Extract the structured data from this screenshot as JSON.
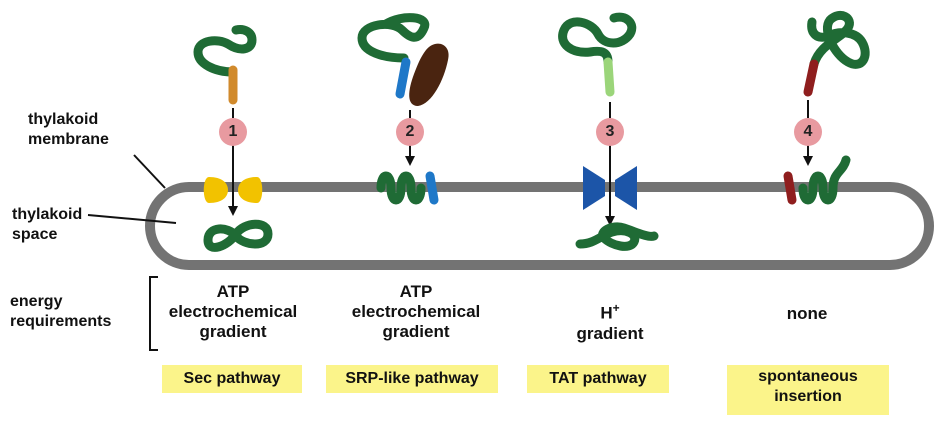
{
  "labels": {
    "membrane_line1": "thylakoid",
    "membrane_line2": "membrane",
    "space_line1": "thylakoid",
    "space_line2": "space",
    "energy_line1": "energy",
    "energy_line2": "requirements"
  },
  "steps": [
    "1",
    "2",
    "3",
    "4"
  ],
  "energy": [
    {
      "line1": "ATP",
      "line2": "electrochemical",
      "line3": "gradient"
    },
    {
      "line1": "ATP",
      "line2": "electrochemical",
      "line3": "gradient"
    },
    {
      "line1": "H",
      "sup": "+",
      "line2": "gradient"
    },
    {
      "line1": "none"
    }
  ],
  "pathways": [
    {
      "line1": "Sec pathway"
    },
    {
      "line1": "SRP-like pathway"
    },
    {
      "line1": "TAT pathway"
    },
    {
      "line1": "spontaneous",
      "line2": "insertion"
    }
  ],
  "colors": {
    "membrane": "#737373",
    "protein": "#1f6b35",
    "sec_signal": "#d18a2c",
    "srp_signal": "#1f78c8",
    "srp_particle": "#4a2410",
    "tat_signal": "#9bd57a",
    "spont_signal": "#8f1e1e",
    "sec_channel": "#f2c200",
    "tat_channel": "#1c55a8",
    "step_circle": "#e89aa0",
    "pathway_highlight": "#fbf48a"
  }
}
